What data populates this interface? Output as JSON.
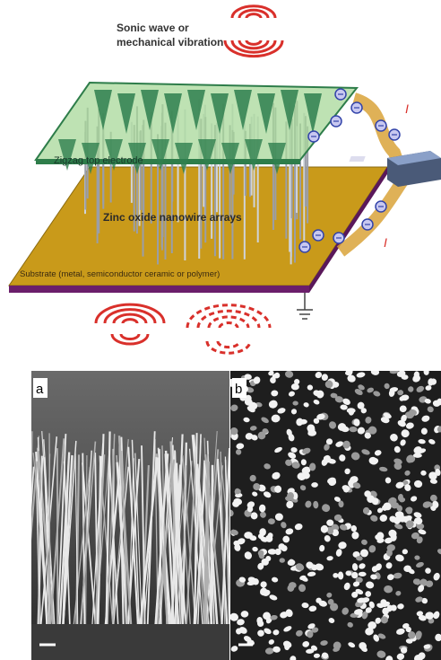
{
  "diagram": {
    "wave_label": [
      "Sonic wave or",
      "mechanical vibration"
    ],
    "electrode_label": "Zigzag top electrode",
    "nanowire_label": "Zinc oxide nanowire arrays",
    "substrate_label": "Substrate (metal, semiconductor ceramic or polymer)",
    "current_labels": [
      "I",
      "I"
    ]
  },
  "panels": [
    {
      "label": "a"
    },
    {
      "label": "b"
    }
  ]
}
